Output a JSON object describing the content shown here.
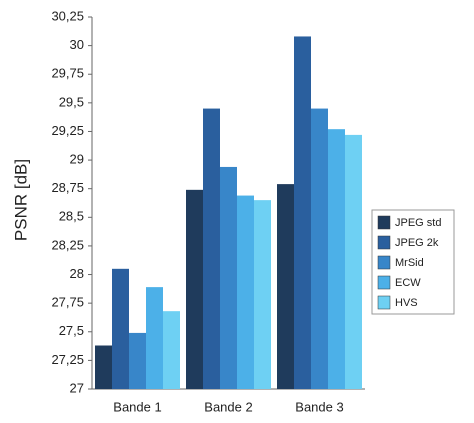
{
  "chart_data": {
    "type": "bar",
    "y_label": "PSNR [dB]",
    "categories": [
      "Bande 1",
      "Bande 2",
      "Bande 3"
    ],
    "series": [
      {
        "name": "JPEG std",
        "color": "#1f3b5c",
        "values": [
          27.38,
          28.74,
          28.79
        ]
      },
      {
        "name": "JPEG 2k",
        "color": "#2a5f9e",
        "values": [
          28.05,
          29.45,
          30.08
        ]
      },
      {
        "name": "MrSid",
        "color": "#3886c9",
        "values": [
          27.49,
          28.94,
          29.45
        ]
      },
      {
        "name": "ECW",
        "color": "#4cb0e8",
        "values": [
          27.89,
          28.69,
          29.27
        ]
      },
      {
        "name": "HVS",
        "color": "#6ed0f3",
        "values": [
          27.68,
          28.65,
          29.22
        ]
      }
    ],
    "ylim": [
      27,
      30.25
    ],
    "yticks": [
      27,
      {
        "value": 27.25,
        "label": "27,25"
      },
      {
        "value": 27.5,
        "label": "27,5"
      },
      {
        "value": 27.75,
        "label": "27,75"
      },
      28,
      {
        "value": 28.25,
        "label": "28,25"
      },
      {
        "value": 28.5,
        "label": "28,5"
      },
      {
        "value": 28.75,
        "label": "28,75"
      },
      29,
      {
        "value": 29.25,
        "label": "29,25"
      },
      {
        "value": 29.5,
        "label": "29,5"
      },
      {
        "value": 29.75,
        "label": "29,75"
      },
      30,
      {
        "value": 30.25,
        "label": "30,25"
      }
    ],
    "grid": false,
    "legend": "right"
  }
}
